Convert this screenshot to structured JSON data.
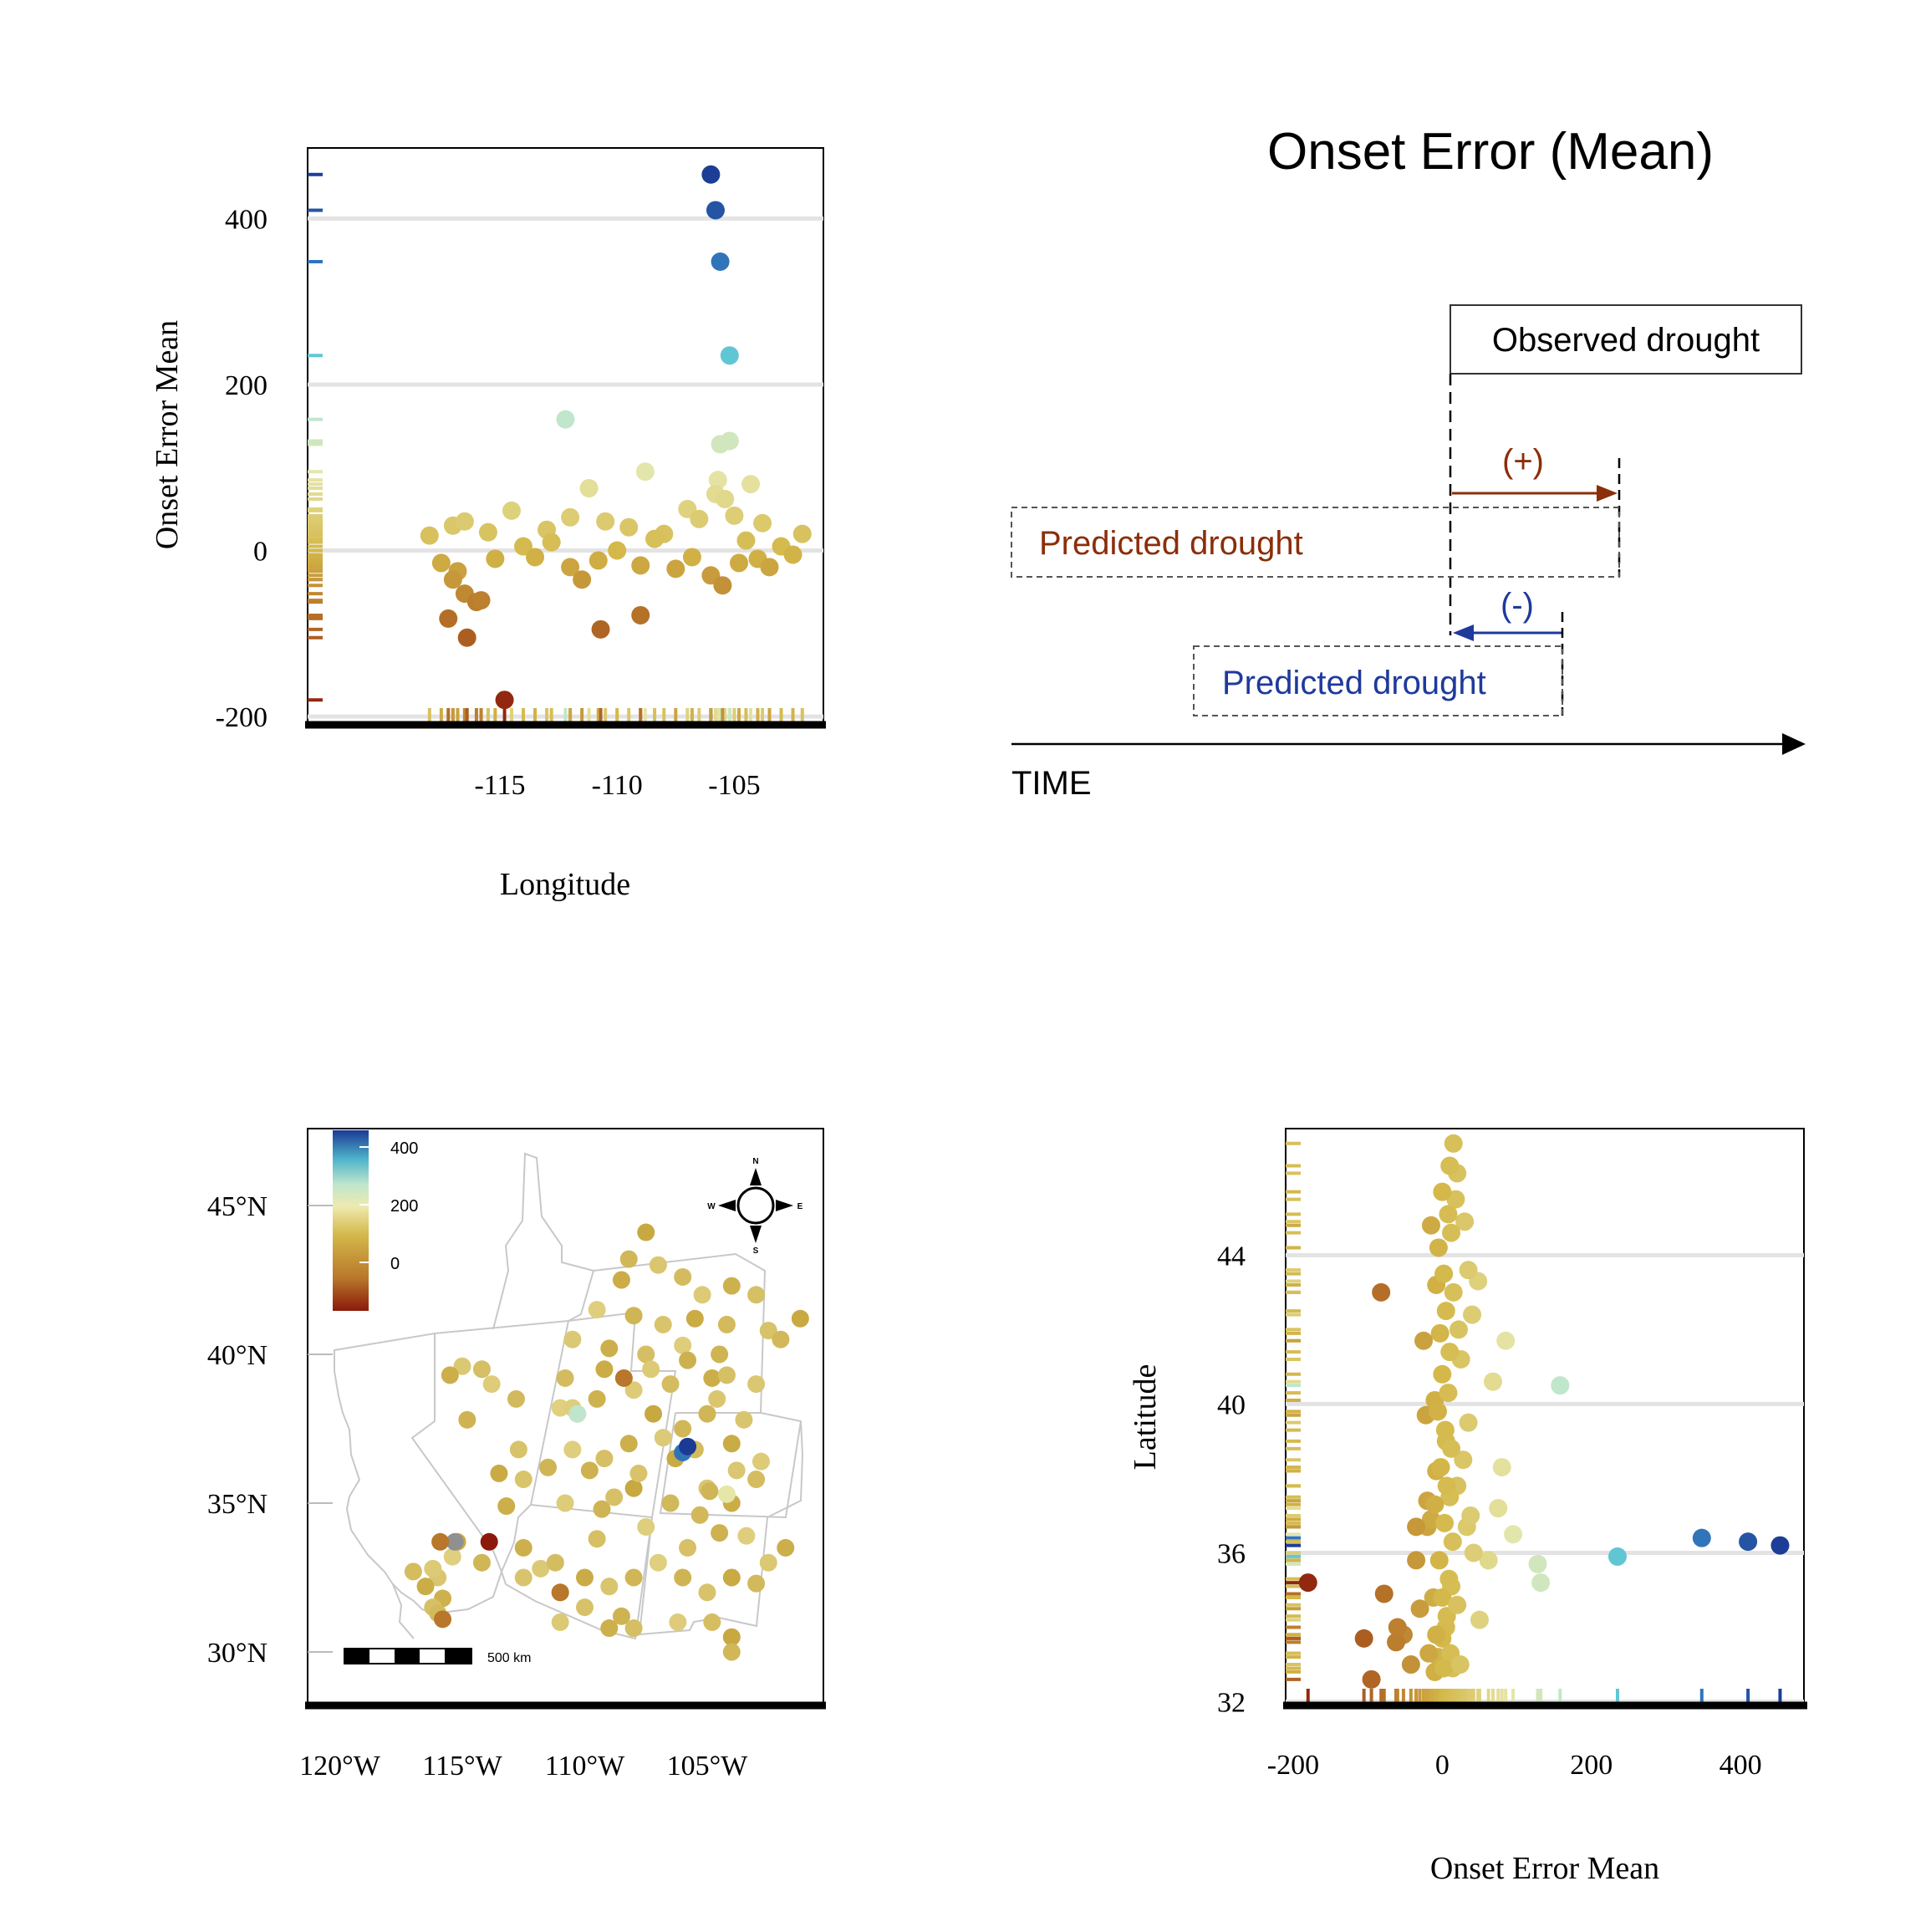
{
  "title": "Onset Error (Mean)",
  "colors": {
    "brown_dark": "#8b1a0a",
    "brown": "#b8772a",
    "gold": "#d4b84a",
    "pale": "#e6e6a8",
    "mint": "#bfe6cc",
    "cyan": "#5bc4d4",
    "blue": "#2f74b8",
    "navy": "#1c3a94",
    "arrow_pos": "#8b2e0a",
    "arrow_neg": "#1f3a9c",
    "state_line": "#c8c8c8"
  },
  "chart_data": [
    {
      "type": "scatter",
      "panel": "lon-vs-error",
      "xlabel": "Longitude",
      "ylabel": "Onset Error Mean",
      "xlim": [
        -123.2,
        -101.2
      ],
      "ylim": [
        -210,
        485
      ],
      "xticks": [
        -115,
        -110,
        -105
      ],
      "yticks": [
        -200,
        0,
        200,
        400
      ],
      "grid": "horizontal",
      "rug": "left and bottom",
      "points": [
        [
          -106.0,
          453
        ],
        [
          -105.8,
          410
        ],
        [
          -105.6,
          348
        ],
        [
          -105.2,
          235
        ],
        [
          -112.2,
          158
        ],
        [
          -105.6,
          128
        ],
        [
          -105.2,
          132
        ],
        [
          -105.7,
          85
        ],
        [
          -104.3,
          80
        ],
        [
          -108.8,
          95
        ],
        [
          -111.2,
          75
        ],
        [
          -105.8,
          68
        ],
        [
          -105.4,
          62
        ],
        [
          -114.5,
          48
        ],
        [
          -112.0,
          40
        ],
        [
          -107.0,
          50
        ],
        [
          -103.8,
          33
        ],
        [
          -102.1,
          20
        ],
        [
          -118.0,
          18
        ],
        [
          -117.0,
          30
        ],
        [
          -116.5,
          35
        ],
        [
          -115.5,
          22
        ],
        [
          -113.0,
          25
        ],
        [
          -110.5,
          35
        ],
        [
          -109.5,
          28
        ],
        [
          -108.0,
          20
        ],
        [
          -106.5,
          38
        ],
        [
          -105.0,
          42
        ],
        [
          -104.5,
          12
        ],
        [
          -103.0,
          5
        ],
        [
          -102.5,
          -5
        ],
        [
          -104.0,
          -10
        ],
        [
          -117.5,
          -15
        ],
        [
          -116.8,
          -25
        ],
        [
          -115.2,
          -10
        ],
        [
          -114.0,
          5
        ],
        [
          -113.5,
          -8
        ],
        [
          -112.8,
          10
        ],
        [
          -112.0,
          -20
        ],
        [
          -111.5,
          -35
        ],
        [
          -110.8,
          -12
        ],
        [
          -110.0,
          0
        ],
        [
          -109.0,
          -18
        ],
        [
          -108.4,
          14
        ],
        [
          -107.5,
          -22
        ],
        [
          -106.8,
          -8
        ],
        [
          -106.0,
          -30
        ],
        [
          -105.5,
          -42
        ],
        [
          -104.8,
          -15
        ],
        [
          -103.5,
          -20
        ],
        [
          -117.0,
          -35
        ],
        [
          -116.5,
          -52
        ],
        [
          -116.0,
          -62
        ],
        [
          -115.8,
          -60
        ],
        [
          -117.2,
          -82
        ],
        [
          -116.4,
          -105
        ],
        [
          -110.7,
          -95
        ],
        [
          -109.0,
          -78
        ],
        [
          -114.8,
          -180
        ]
      ]
    },
    {
      "type": "scatter",
      "panel": "map",
      "xticks": [
        "120°W",
        "115°W",
        "110°W",
        "105°W"
      ],
      "yticks": [
        "45°N",
        "40°N",
        "35°N",
        "30°N"
      ],
      "legend": {
        "labels": [
          "400",
          "200",
          "0"
        ],
        "position": "top-left"
      },
      "scale_bar": "500 km",
      "compass": [
        "N",
        "S",
        "E",
        "W"
      ],
      "points": [
        [
          -107.5,
          44.1
        ],
        [
          -108.2,
          43.2
        ],
        [
          -107.0,
          43.0
        ],
        [
          -108.5,
          42.5
        ],
        [
          -106.0,
          42.6
        ],
        [
          -105.2,
          42.0
        ],
        [
          -104.0,
          42.3
        ],
        [
          -103.0,
          42.0
        ],
        [
          -109.5,
          41.5
        ],
        [
          -108.0,
          41.3
        ],
        [
          -106.8,
          41.0
        ],
        [
          -105.5,
          41.2
        ],
        [
          -104.2,
          41.0
        ],
        [
          -110.5,
          40.5
        ],
        [
          -109.0,
          40.2
        ],
        [
          -107.5,
          40.0
        ],
        [
          -106.0,
          40.3
        ],
        [
          -104.5,
          40.0
        ],
        [
          -102.5,
          40.8
        ],
        [
          -101.2,
          41.2
        ],
        [
          -102.0,
          40.5
        ],
        [
          -103.0,
          39.0
        ],
        [
          -104.8,
          39.2
        ],
        [
          -106.5,
          39.0
        ],
        [
          -108.0,
          38.8
        ],
        [
          -109.5,
          38.5
        ],
        [
          -110.3,
          38.0
        ],
        [
          -111.0,
          38.2
        ],
        [
          -105.0,
          38.0
        ],
        [
          -103.5,
          37.8
        ],
        [
          -104.0,
          37.0
        ],
        [
          -105.5,
          36.8
        ],
        [
          -106.8,
          37.2
        ],
        [
          -108.2,
          37.0
        ],
        [
          -109.2,
          36.5
        ],
        [
          -110.5,
          36.8
        ],
        [
          -111.5,
          36.2
        ],
        [
          -112.5,
          35.8
        ],
        [
          -113.5,
          36.0
        ],
        [
          -112.8,
          38.5
        ],
        [
          -115.0,
          39.6
        ],
        [
          -115.5,
          39.3
        ],
        [
          -114.2,
          39.5
        ],
        [
          -113.8,
          39.0
        ],
        [
          -114.8,
          37.8
        ],
        [
          -112.7,
          36.8
        ],
        [
          -108.0,
          35.5
        ],
        [
          -106.5,
          35.0
        ],
        [
          -105.0,
          35.5
        ],
        [
          -104.0,
          35.0
        ],
        [
          -103.0,
          35.8
        ],
        [
          -102.8,
          36.4
        ],
        [
          -104.5,
          34.0
        ],
        [
          -105.8,
          33.5
        ],
        [
          -107.0,
          33.0
        ],
        [
          -108.0,
          32.5
        ],
        [
          -109.0,
          32.2
        ],
        [
          -110.0,
          32.5
        ],
        [
          -111.0,
          32.0
        ],
        [
          -111.8,
          32.8
        ],
        [
          -112.5,
          33.5
        ],
        [
          -109.5,
          33.8
        ],
        [
          -107.5,
          34.2
        ],
        [
          -106.0,
          32.5
        ],
        [
          -105.0,
          32.0
        ],
        [
          -104.0,
          32.5
        ],
        [
          -103.0,
          32.3
        ],
        [
          -102.5,
          33.0
        ],
        [
          -101.8,
          33.5
        ],
        [
          -104.8,
          31.0
        ],
        [
          -106.2,
          31.0
        ],
        [
          -108.5,
          31.2
        ],
        [
          -110.0,
          31.5
        ],
        [
          -104.0,
          30.5
        ],
        [
          -104.0,
          30.0
        ],
        [
          -116.0,
          32.5
        ],
        [
          -116.5,
          32.2
        ],
        [
          -117.0,
          32.7
        ],
        [
          -116.2,
          32.8
        ],
        [
          -115.8,
          31.8
        ],
        [
          -116.2,
          31.5
        ],
        [
          -115.4,
          33.2
        ],
        [
          -114.2,
          33.0
        ],
        [
          -112.5,
          32.5
        ],
        [
          -115.2,
          33.7
        ],
        [
          -116.0,
          31.3
        ],
        [
          -111.0,
          31.0
        ],
        [
          -109.0,
          30.8
        ],
        [
          -108.0,
          30.8
        ],
        [
          -110.5,
          38.2
        ],
        [
          -109.3,
          34.8
        ],
        [
          -107.8,
          36.0
        ],
        [
          -106.3,
          36.5
        ],
        [
          -105.3,
          34.6
        ],
        [
          -103.8,
          36.1
        ],
        [
          -113.2,
          34.9
        ],
        [
          -111.2,
          33.0
        ],
        [
          -110.8,
          35.0
        ],
        [
          -109.8,
          36.1
        ],
        [
          -108.8,
          35.2
        ],
        [
          -107.2,
          38.0
        ],
        [
          -106.0,
          37.5
        ],
        [
          -104.6,
          38.5
        ],
        [
          -109.2,
          39.5
        ],
        [
          -110.8,
          39.2
        ],
        [
          -107.3,
          39.5
        ],
        [
          -105.8,
          39.8
        ],
        [
          -104.2,
          39.3
        ],
        [
          -103.4,
          33.9
        ],
        [
          -104.9,
          35.4
        ]
      ]
    },
    {
      "type": "scatter",
      "panel": "error-vs-lat",
      "xlabel": "Onset Error Mean",
      "ylabel": "Latitude",
      "xlim": [
        -210,
        485
      ],
      "ylim": [
        31.9,
        47.4
      ],
      "xticks": [
        -200,
        0,
        200,
        400
      ],
      "yticks": [
        32,
        36,
        40,
        44
      ],
      "grid": "horizontal",
      "rug": "left and bottom",
      "points": [
        [
          453,
          36.2
        ],
        [
          410,
          36.3
        ],
        [
          348,
          36.4
        ],
        [
          235,
          35.9
        ],
        [
          158,
          40.5
        ],
        [
          128,
          35.7
        ],
        [
          132,
          35.2
        ],
        [
          85,
          41.7
        ],
        [
          80,
          38.3
        ],
        [
          95,
          36.5
        ],
        [
          75,
          37.2
        ],
        [
          68,
          40.6
        ],
        [
          62,
          35.8
        ],
        [
          48,
          43.3
        ],
        [
          40,
          42.4
        ],
        [
          50,
          34.2
        ],
        [
          33,
          36.7
        ],
        [
          20,
          46.2
        ],
        [
          18,
          45.5
        ],
        [
          30,
          44.9
        ],
        [
          35,
          43.6
        ],
        [
          22,
          42.0
        ],
        [
          25,
          41.2
        ],
        [
          35,
          39.5
        ],
        [
          28,
          38.5
        ],
        [
          20,
          37.8
        ],
        [
          38,
          37.0
        ],
        [
          42,
          36.0
        ],
        [
          12,
          35.1
        ],
        [
          5,
          34.0
        ],
        [
          -5,
          33.2
        ],
        [
          -10,
          32.8
        ],
        [
          -15,
          44.8
        ],
        [
          -25,
          41.7
        ],
        [
          -10,
          40.1
        ],
        [
          5,
          39.0
        ],
        [
          -8,
          38.2
        ],
        [
          10,
          37.5
        ],
        [
          -20,
          36.7
        ],
        [
          -35,
          35.8
        ],
        [
          -12,
          34.8
        ],
        [
          0,
          33.7
        ],
        [
          -18,
          33.3
        ],
        [
          14,
          32.9
        ],
        [
          -22,
          39.7
        ],
        [
          -8,
          43.2
        ],
        [
          -30,
          34.5
        ],
        [
          -42,
          33.0
        ],
        [
          -15,
          36.9
        ],
        [
          -20,
          37.4
        ],
        [
          -35,
          36.7
        ],
        [
          -52,
          33.8
        ],
        [
          -62,
          33.6
        ],
        [
          -60,
          34.0
        ],
        [
          -82,
          43.0
        ],
        [
          -105,
          33.7
        ],
        [
          -95,
          32.6
        ],
        [
          -78,
          34.9
        ],
        [
          -180,
          35.2
        ],
        [
          15,
          47.0
        ],
        [
          10,
          46.4
        ],
        [
          0,
          45.7
        ],
        [
          8,
          45.1
        ],
        [
          12,
          44.6
        ],
        [
          -5,
          44.2
        ],
        [
          2,
          43.5
        ],
        [
          15,
          43.0
        ],
        [
          5,
          42.5
        ],
        [
          -3,
          41.9
        ],
        [
          10,
          41.4
        ],
        [
          0,
          40.8
        ],
        [
          8,
          40.3
        ],
        [
          -6,
          39.8
        ],
        [
          4,
          39.3
        ],
        [
          12,
          38.8
        ],
        [
          -2,
          38.3
        ],
        [
          6,
          37.8
        ],
        [
          -10,
          37.3
        ],
        [
          3,
          36.8
        ],
        [
          14,
          36.3
        ],
        [
          -4,
          35.8
        ],
        [
          9,
          35.3
        ],
        [
          0,
          34.8
        ],
        [
          6,
          34.3
        ],
        [
          -8,
          33.8
        ],
        [
          11,
          33.3
        ],
        [
          2,
          32.9
        ],
        [
          20,
          34.6
        ],
        [
          24,
          33.0
        ]
      ]
    }
  ],
  "diagram": {
    "observed_label": "Observed drought",
    "predicted_late_label": "Predicted drought",
    "predicted_early_label": "Predicted drought",
    "positive_label": "(+)",
    "negative_label": "(-)",
    "time_label": "TIME"
  }
}
